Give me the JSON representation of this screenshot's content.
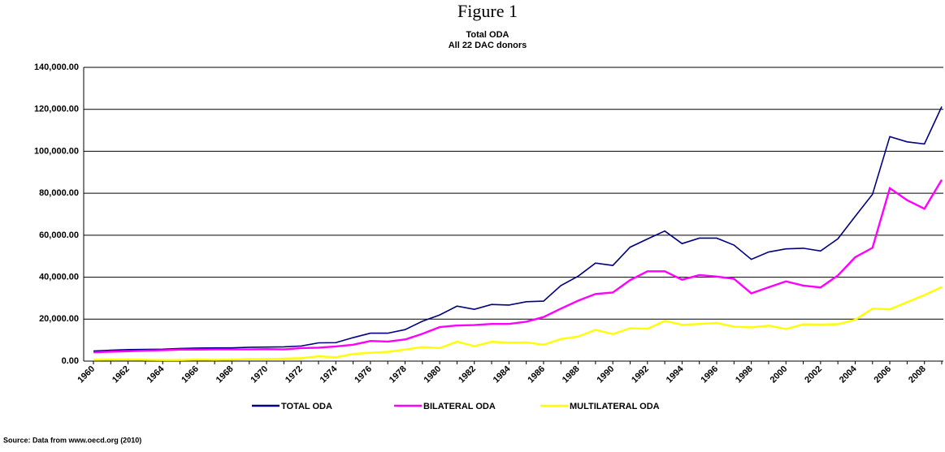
{
  "page_title": "Figure 1",
  "chart_data": {
    "type": "line",
    "title": "Total ODA",
    "subtitle": "All 22 DAC donors",
    "source": "Source: Data from www.oecd.org (2010)",
    "categories": [
      "1960",
      null,
      "1962",
      null,
      "1964",
      null,
      "1966",
      null,
      "1968",
      null,
      "1970",
      null,
      "1972",
      null,
      "1974",
      null,
      "1976",
      null,
      "1978",
      null,
      "1980",
      null,
      "1982",
      null,
      "1984",
      null,
      "1986",
      null,
      "1988",
      null,
      "1990",
      null,
      "1992",
      null,
      "1994",
      null,
      "1996",
      null,
      "1998",
      null,
      "2000",
      null,
      "2002",
      null,
      "2004",
      null,
      "2006",
      null,
      "2008",
      null
    ],
    "series": [
      {
        "name": "TOTAL ODA",
        "color": "#000080",
        "values": [
          4800,
          5200,
          5500,
          5600,
          5700,
          6000,
          6200,
          6300,
          6300,
          6600,
          6700,
          6800,
          7200,
          8700,
          8800,
          11200,
          13300,
          13300,
          15000,
          19000,
          22000,
          26200,
          24700,
          27000,
          26700,
          28300,
          28600,
          36000,
          40500,
          46700,
          45600,
          54300,
          58200,
          62000,
          56000,
          58600,
          58600,
          55300,
          48500,
          52000,
          53500,
          53800,
          52500,
          58300,
          69000,
          79500,
          107000,
          104500,
          103500,
          121300
        ]
      },
      {
        "name": "BILATERAL ODA",
        "color": "#ff00ff",
        "values": [
          4200,
          4500,
          4700,
          5000,
          5200,
          5500,
          5500,
          5600,
          5600,
          5600,
          5700,
          5600,
          6200,
          6400,
          7000,
          7800,
          9600,
          9300,
          10300,
          13000,
          16200,
          17000,
          17200,
          17700,
          17700,
          18800,
          21000,
          25000,
          28800,
          32000,
          32700,
          38600,
          42800,
          42800,
          38800,
          41000,
          40300,
          39200,
          32300,
          35200,
          38000,
          36000,
          35100,
          40800,
          49500,
          54000,
          82400,
          76700,
          72600,
          86400
        ]
      },
      {
        "name": "MULTILATERAL ODA",
        "color": "#ffff00",
        "values": [
          600,
          700,
          800,
          600,
          500,
          500,
          700,
          600,
          700,
          1000,
          1000,
          1200,
          1400,
          2300,
          1800,
          3400,
          4000,
          4400,
          5500,
          6700,
          6200,
          9300,
          7100,
          9200,
          8800,
          8900,
          7800,
          10500,
          11700,
          14900,
          12900,
          15700,
          15400,
          19200,
          17300,
          17700,
          18200,
          16400,
          16100,
          16900,
          15300,
          17500,
          17400,
          17600,
          19700,
          25000,
          24700,
          28100,
          31500,
          35300
        ]
      }
    ],
    "ylim": [
      0,
      140000
    ],
    "yticks": [
      {
        "value": 0,
        "label": "0.00"
      },
      {
        "value": 20000,
        "label": "20,000.00"
      },
      {
        "value": 40000,
        "label": "40,000.00"
      },
      {
        "value": 60000,
        "label": "60,000.00"
      },
      {
        "value": 80000,
        "label": "80,000.00"
      },
      {
        "value": 100000,
        "label": "100,000.00"
      },
      {
        "value": 120000,
        "label": "120,000.00"
      },
      {
        "value": 140000,
        "label": "140,000.00"
      }
    ],
    "grid": true,
    "legend": "bottom"
  }
}
